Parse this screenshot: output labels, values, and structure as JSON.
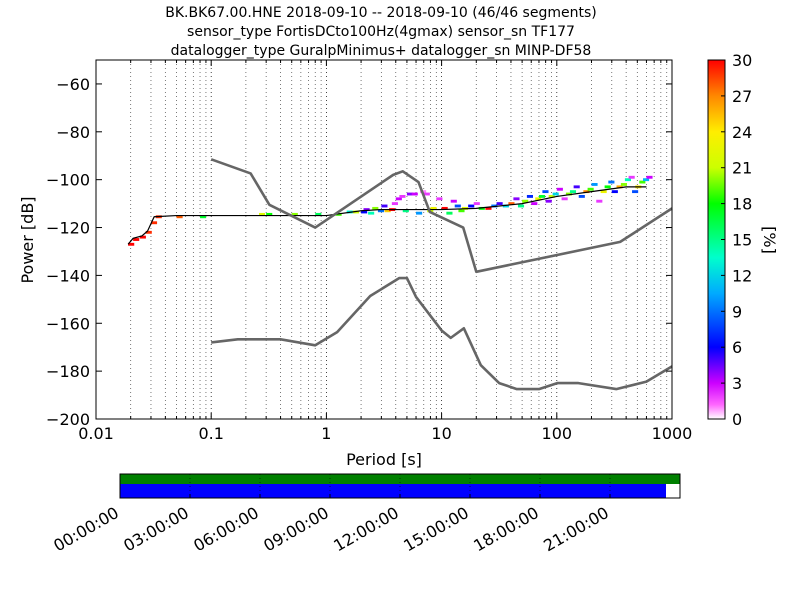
{
  "title_lines": [
    "BK.BK67.00.HNE   2018-09-10 -- 2018-09-10  (46/46 segments)",
    "sensor_type FortisDCto100Hz(4gmax) sensor_sn TF177",
    "datalogger_type GuralpMinimus+ datalogger_sn MINP-DF58"
  ],
  "chart_data": {
    "type": "heatmap",
    "xlabel": "Period [s]",
    "ylabel": "Power [dB]",
    "x_scale": "log",
    "xlim": [
      0.01,
      1000
    ],
    "ylim": [
      -200,
      -50
    ],
    "x_ticks": [
      0.01,
      0.1,
      1,
      10,
      100,
      1000
    ],
    "x_tick_labels": [
      "0.01",
      "0.1",
      "1",
      "10",
      "100",
      "1000"
    ],
    "y_ticks": [
      -200,
      -180,
      -160,
      -140,
      -120,
      -100,
      -80,
      -60
    ],
    "y_tick_labels": [
      "−200",
      "−180",
      "−160",
      "−140",
      "−120",
      "−100",
      "−80",
      "−60"
    ],
    "grid": "dotted vertical",
    "colorbar": {
      "label": "[%]",
      "min": 0,
      "max": 30,
      "ticks": [
        0,
        3,
        6,
        9,
        12,
        15,
        18,
        21,
        24,
        27,
        30
      ],
      "tick_labels": [
        "0",
        "3",
        "6",
        "9",
        "12",
        "15",
        "18",
        "21",
        "24",
        "27",
        "30"
      ],
      "colormap": "pqlx"
    },
    "noise_models": [
      {
        "id": "high_noise_model",
        "color": "#666666",
        "points": [
          [
            0.1,
            -91.5
          ],
          [
            0.22,
            -97.4
          ],
          [
            0.32,
            -110.5
          ],
          [
            0.8,
            -120.0
          ],
          [
            3.8,
            -98.0
          ],
          [
            4.6,
            -96.5
          ],
          [
            6.3,
            -101.0
          ],
          [
            7.9,
            -113.5
          ],
          [
            15.4,
            -120.0
          ],
          [
            20.0,
            -138.5
          ],
          [
            354.8,
            -126.0
          ],
          [
            1000,
            -112.0
          ]
        ]
      },
      {
        "id": "low_noise_model",
        "color": "#666666",
        "points": [
          [
            0.1,
            -168.0
          ],
          [
            0.17,
            -166.7
          ],
          [
            0.4,
            -166.7
          ],
          [
            0.8,
            -169.2
          ],
          [
            1.24,
            -163.7
          ],
          [
            2.4,
            -148.6
          ],
          [
            4.3,
            -141.1
          ],
          [
            5.0,
            -141.1
          ],
          [
            6.0,
            -149.0
          ],
          [
            10.0,
            -163.0
          ],
          [
            12.0,
            -166.1
          ],
          [
            15.6,
            -162.1
          ],
          [
            21.9,
            -177.5
          ],
          [
            31.6,
            -185.0
          ],
          [
            45.0,
            -187.5
          ],
          [
            70.0,
            -187.5
          ],
          [
            101.0,
            -185.0
          ],
          [
            154.0,
            -185.0
          ],
          [
            328.0,
            -187.5
          ],
          [
            600.0,
            -184.4
          ],
          [
            1000,
            -178.0
          ]
        ]
      }
    ],
    "psd_mode": {
      "color": "#000000",
      "points": [
        [
          0.019,
          -127
        ],
        [
          0.021,
          -124.5
        ],
        [
          0.025,
          -123.5
        ],
        [
          0.028,
          -121.5
        ],
        [
          0.032,
          -115.5
        ],
        [
          0.05,
          -115
        ],
        [
          0.1,
          -115
        ],
        [
          0.3,
          -115
        ],
        [
          1,
          -115
        ],
        [
          2,
          -113
        ],
        [
          3,
          -112.5
        ],
        [
          5,
          -112.5
        ],
        [
          10,
          -112.5
        ],
        [
          20,
          -112
        ],
        [
          50,
          -110
        ],
        [
          100,
          -107
        ],
        [
          200,
          -105
        ],
        [
          400,
          -103
        ],
        [
          600,
          -103
        ]
      ]
    },
    "psd_cells": [
      [
        0.019,
        -127,
        30
      ],
      [
        0.021,
        -125,
        30
      ],
      [
        0.024,
        -124,
        30
      ],
      [
        0.027,
        -122,
        29
      ],
      [
        0.03,
        -118,
        29
      ],
      [
        0.033,
        -115.5,
        29
      ],
      [
        0.05,
        -115.5,
        28
      ],
      [
        0.08,
        -115.5,
        17
      ],
      [
        0.26,
        -114.5,
        22
      ],
      [
        0.3,
        -114.5,
        18
      ],
      [
        0.5,
        -114.5,
        20
      ],
      [
        0.8,
        -114.5,
        16
      ],
      [
        1.2,
        -114.5,
        19
      ],
      [
        1.5,
        -113.5,
        13
      ],
      [
        1.7,
        -113.5,
        21
      ],
      [
        2.0,
        -113.5,
        6
      ],
      [
        2.1,
        -112.5,
        4
      ],
      [
        2.3,
        -114,
        14
      ],
      [
        2.5,
        -112,
        20
      ],
      [
        2.8,
        -113,
        9
      ],
      [
        3.0,
        -111,
        5
      ],
      [
        3.2,
        -113,
        25
      ],
      [
        3.5,
        -112.5,
        30
      ],
      [
        3.7,
        -110,
        2
      ],
      [
        4.0,
        -108,
        3
      ],
      [
        4.3,
        -107,
        2
      ],
      [
        4.6,
        -113,
        15
      ],
      [
        5.0,
        -106,
        4
      ],
      [
        5.5,
        -106,
        3
      ],
      [
        6.0,
        -114,
        10
      ],
      [
        6.5,
        -105,
        1
      ],
      [
        7.0,
        -106,
        2
      ],
      [
        7.5,
        -113,
        21
      ],
      [
        8.0,
        -112,
        23
      ],
      [
        9.0,
        -108,
        2
      ],
      [
        10.0,
        -112,
        30
      ],
      [
        11.0,
        -114,
        16
      ],
      [
        12.0,
        -109,
        3
      ],
      [
        13.0,
        -111,
        8
      ],
      [
        14.0,
        -113,
        19
      ],
      [
        15.0,
        -112,
        22
      ],
      [
        17.0,
        -111,
        6
      ],
      [
        19.0,
        -110,
        2
      ],
      [
        21.0,
        -112,
        18
      ],
      [
        24.0,
        -112,
        30
      ],
      [
        27.0,
        -111,
        9
      ],
      [
        30.0,
        -110,
        5
      ],
      [
        34.0,
        -111,
        12
      ],
      [
        38.0,
        -110,
        28
      ],
      [
        42.0,
        -108,
        4
      ],
      [
        46.0,
        -111,
        15
      ],
      [
        50.0,
        -109,
        20
      ],
      [
        55.0,
        -107,
        7
      ],
      [
        60.0,
        -110,
        3
      ],
      [
        65.0,
        -108,
        23
      ],
      [
        70.0,
        -107,
        17
      ],
      [
        75.0,
        -105,
        8
      ],
      [
        80.0,
        -109,
        4
      ],
      [
        85.0,
        -107,
        21
      ],
      [
        92.0,
        -106,
        12
      ],
      [
        100.0,
        -104,
        3
      ],
      [
        110.0,
        -108,
        2
      ],
      [
        120.0,
        -106,
        20
      ],
      [
        130.0,
        -105,
        15
      ],
      [
        140.0,
        -103,
        5
      ],
      [
        155.0,
        -107,
        8
      ],
      [
        170.0,
        -105,
        27
      ],
      [
        185.0,
        -104,
        19
      ],
      [
        200.0,
        -102,
        10
      ],
      [
        220.0,
        -109,
        2
      ],
      [
        240.0,
        -105,
        23
      ],
      [
        260.0,
        -103,
        18
      ],
      [
        280.0,
        -101,
        9
      ],
      [
        300.0,
        -105,
        6
      ],
      [
        330.0,
        -103,
        26
      ],
      [
        360.0,
        -102,
        20
      ],
      [
        390.0,
        -100,
        14
      ],
      [
        420.0,
        -99,
        2
      ],
      [
        450.0,
        -105,
        8
      ],
      [
        480.0,
        -103,
        24
      ],
      [
        520.0,
        -101,
        19
      ],
      [
        560.0,
        -100,
        11
      ],
      [
        600.0,
        -99,
        3
      ]
    ]
  },
  "timeline": {
    "tick_labels": [
      "00:00:00",
      "03:00:00",
      "06:00:00",
      "09:00:00",
      "12:00:00",
      "15:00:00",
      "18:00:00",
      "21:00:00"
    ],
    "data_coverage_fraction": 1.0,
    "psd_coverage_fraction": 0.975,
    "data_color": "#008000",
    "psd_color": "#0000ff"
  }
}
